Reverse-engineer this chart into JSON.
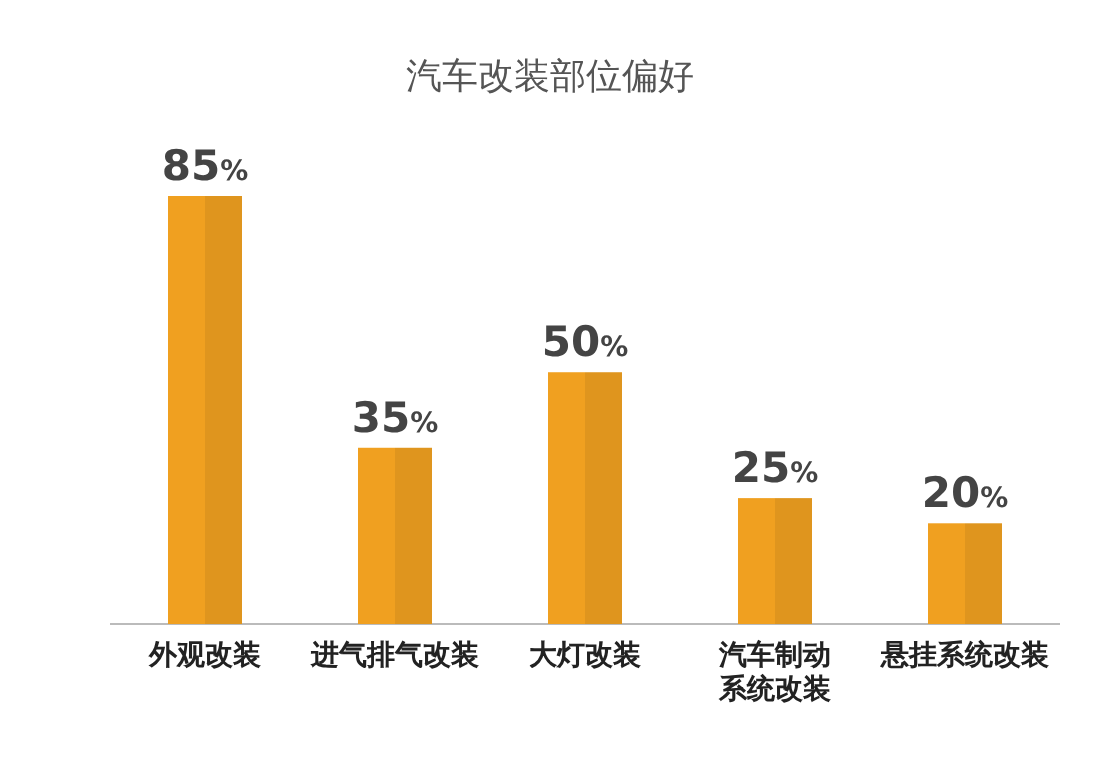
{
  "chart_data": {
    "type": "bar",
    "title": "汽车改装部位偏好",
    "categories": [
      "外观改装",
      "进气排气改装",
      "大灯改装",
      "汽车制动系统改装",
      "悬挂系统改装"
    ],
    "values": [
      85,
      35,
      50,
      25,
      20
    ],
    "value_labels": [
      "85%",
      "35%",
      "50%",
      "25%",
      "20%"
    ],
    "color": "#f0a020"
  }
}
